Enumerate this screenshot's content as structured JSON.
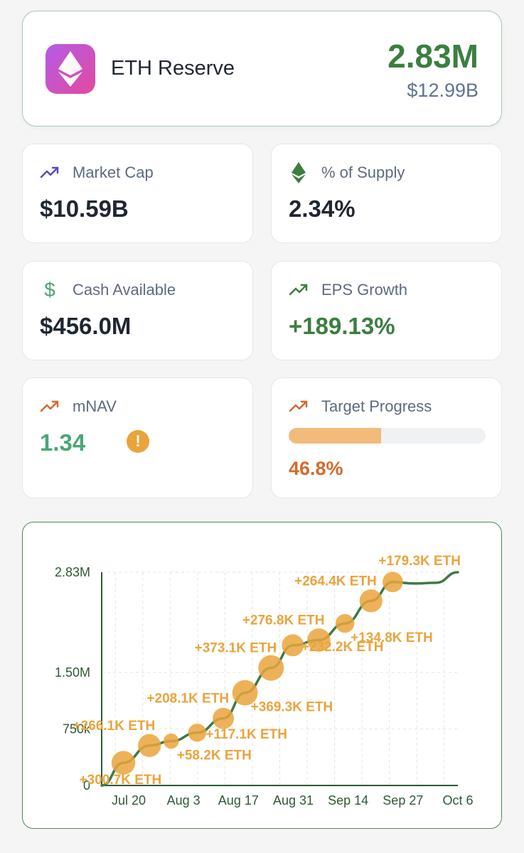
{
  "hero": {
    "name": "ETH Reserve",
    "amount": "2.83M",
    "usd_value": "$12.99B",
    "logo_icon": "ethereum-icon"
  },
  "stats": {
    "market_cap": {
      "label": "Market Cap",
      "value": "$10.59B",
      "icon": "trending-up-icon"
    },
    "supply": {
      "label": "% of Supply",
      "value": "2.34%",
      "icon": "ethereum-icon"
    },
    "cash": {
      "label": "Cash Available",
      "value": "$456.0M",
      "icon": "dollar-icon"
    },
    "eps": {
      "label": "EPS Growth",
      "value": "+189.13%",
      "icon": "trending-up-icon"
    },
    "mnav": {
      "label": "mNAV",
      "value": "1.34",
      "icon": "trending-up-icon",
      "warning_icon": "warning-icon",
      "warning_glyph": "!"
    },
    "target": {
      "label": "Target Progress",
      "value": "46.8%",
      "progress": 0.468,
      "icon": "trending-up-icon"
    }
  },
  "colors": {
    "accent_green": "#3c7e40",
    "bubble": "#eaa43c",
    "progress_fill": "#f2bb7c",
    "market_cap_icon": "#5a49c9",
    "orange_icon": "#d46a2c"
  },
  "chart_data": {
    "type": "line",
    "title": "",
    "xlabel": "",
    "ylabel": "",
    "x_ticks": [
      "Jul 20",
      "Aug 3",
      "Aug 17",
      "Aug 31",
      "Sep 14",
      "Sep 27",
      "Oct 6"
    ],
    "y_ticks": [
      {
        "label": "0",
        "value": 0
      },
      {
        "label": "750k",
        "value": 750000
      },
      {
        "label": "1.50M",
        "value": 1500000
      },
      {
        "label": "2.83M",
        "value": 2830000
      }
    ],
    "ylim": [
      0,
      2830000
    ],
    "x_range": [
      0,
      82
    ],
    "line": [
      {
        "x": 0,
        "y": 0
      },
      {
        "x": 5,
        "y": 300700
      },
      {
        "x": 11,
        "y": 530000
      },
      {
        "x": 16,
        "y": 588000
      },
      {
        "x": 22,
        "y": 700000
      },
      {
        "x": 28,
        "y": 890000
      },
      {
        "x": 33,
        "y": 1230000
      },
      {
        "x": 39,
        "y": 1560000
      },
      {
        "x": 44,
        "y": 1860000
      },
      {
        "x": 50,
        "y": 1930000
      },
      {
        "x": 56,
        "y": 2150000
      },
      {
        "x": 62,
        "y": 2450000
      },
      {
        "x": 67,
        "y": 2700000
      },
      {
        "x": 72,
        "y": 2680000
      },
      {
        "x": 77,
        "y": 2690000
      },
      {
        "x": 82,
        "y": 2830000
      }
    ],
    "purchases": [
      {
        "x": 5,
        "y": 300700,
        "size": 300700,
        "label": "+300.7K ETH",
        "anchor": "below-left"
      },
      {
        "x": 11,
        "y": 530000,
        "size": 266100,
        "label": "+266.1K ETH",
        "anchor": "above-left"
      },
      {
        "x": 16,
        "y": 588000,
        "size": 58200,
        "label": "+58.2K ETH",
        "anchor": "below-right"
      },
      {
        "x": 22,
        "y": 700000,
        "size": 117100,
        "label": "+117.1K ETH",
        "anchor": "right"
      },
      {
        "x": 28,
        "y": 890000,
        "size": 208100,
        "label": "+208.1K ETH",
        "anchor": "above-left"
      },
      {
        "x": 33,
        "y": 1230000,
        "size": 369300,
        "label": "+369.3K ETH",
        "anchor": "below-right"
      },
      {
        "x": 39,
        "y": 1560000,
        "size": 373100,
        "label": "+373.1K ETH",
        "anchor": "above-left"
      },
      {
        "x": 44,
        "y": 1860000,
        "size": 232200,
        "label": "+232.2K ETH",
        "anchor": "right"
      },
      {
        "x": 50,
        "y": 1930000,
        "size": 276800,
        "label": "+276.8K ETH",
        "anchor": "above-left"
      },
      {
        "x": 56,
        "y": 2150000,
        "size": 134800,
        "label": "+134.8K ETH",
        "anchor": "below-right"
      },
      {
        "x": 62,
        "y": 2450000,
        "size": 264400,
        "label": "+264.4K ETH",
        "anchor": "above-left"
      },
      {
        "x": 67,
        "y": 2700000,
        "size": 179300,
        "label": "+179.3K ETH",
        "anchor": "above-right"
      }
    ]
  }
}
